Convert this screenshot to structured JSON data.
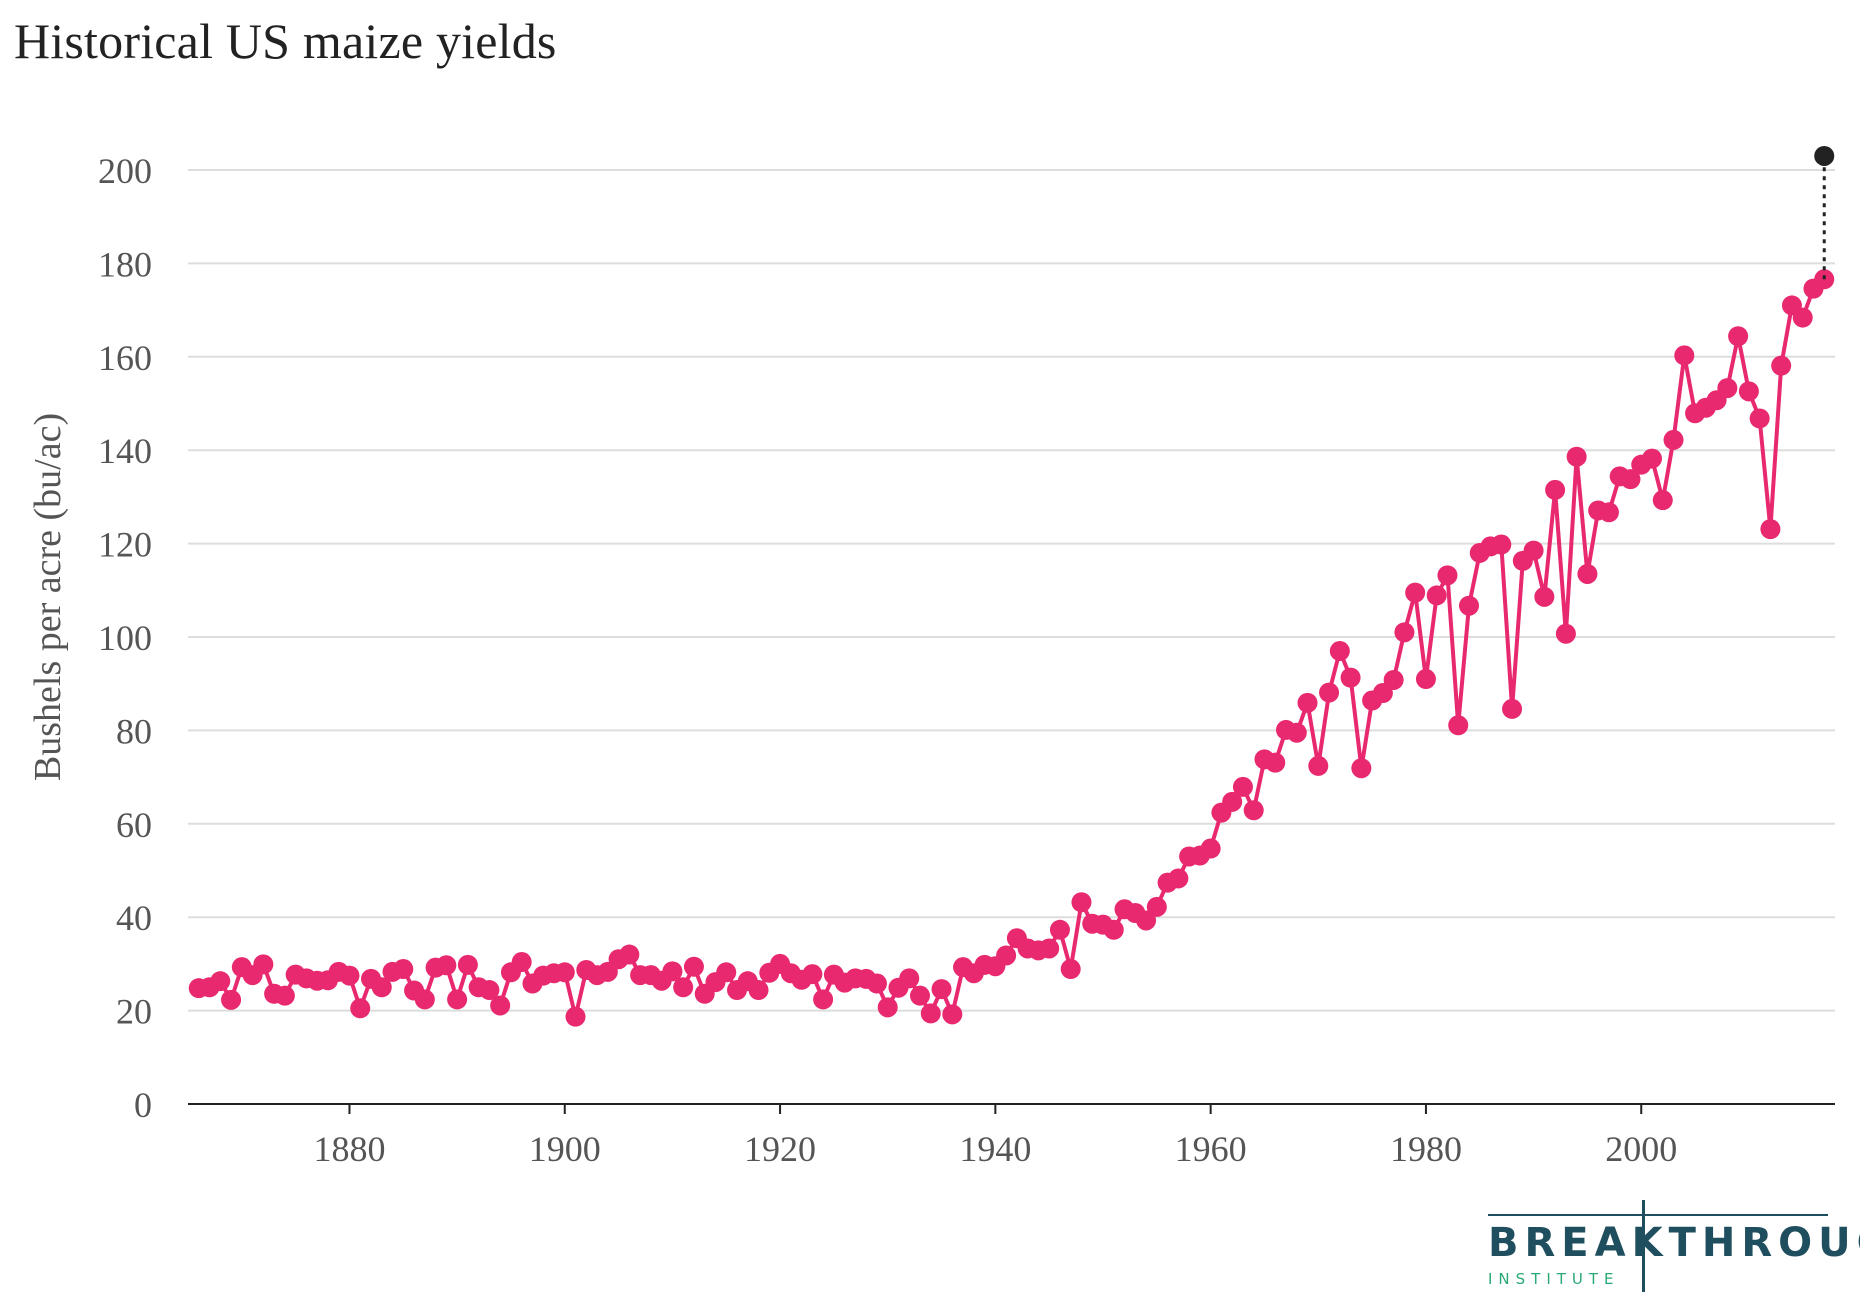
{
  "chart_data": {
    "type": "line",
    "title": "Historical US maize yields",
    "xlabel": "",
    "ylabel": "Bushels per acre (bu/ac)",
    "xlim": [
      1865,
      2018
    ],
    "ylim": [
      0,
      200
    ],
    "x_ticks": [
      1880,
      1900,
      1920,
      1940,
      1960,
      1980,
      2000
    ],
    "y_ticks": [
      0,
      20,
      40,
      60,
      80,
      100,
      120,
      140,
      160,
      180,
      200
    ],
    "grid": true,
    "series": [
      {
        "name": "US maize yield",
        "color": "#e8296f",
        "x": [
          1866,
          1867,
          1868,
          1869,
          1870,
          1871,
          1872,
          1873,
          1874,
          1875,
          1876,
          1877,
          1878,
          1879,
          1880,
          1881,
          1882,
          1883,
          1884,
          1885,
          1886,
          1887,
          1888,
          1889,
          1890,
          1891,
          1892,
          1893,
          1894,
          1895,
          1896,
          1897,
          1898,
          1899,
          1900,
          1901,
          1902,
          1903,
          1904,
          1905,
          1906,
          1907,
          1908,
          1909,
          1910,
          1911,
          1912,
          1913,
          1914,
          1915,
          1916,
          1917,
          1918,
          1919,
          1920,
          1921,
          1922,
          1923,
          1924,
          1925,
          1926,
          1927,
          1928,
          1929,
          1930,
          1931,
          1932,
          1933,
          1934,
          1935,
          1936,
          1937,
          1938,
          1939,
          1940,
          1941,
          1942,
          1943,
          1944,
          1945,
          1946,
          1947,
          1948,
          1949,
          1950,
          1951,
          1952,
          1953,
          1954,
          1955,
          1956,
          1957,
          1958,
          1959,
          1960,
          1961,
          1962,
          1963,
          1964,
          1965,
          1966,
          1967,
          1968,
          1969,
          1970,
          1971,
          1972,
          1973,
          1974,
          1975,
          1976,
          1977,
          1978,
          1979,
          1980,
          1981,
          1982,
          1983,
          1984,
          1985,
          1986,
          1987,
          1988,
          1989,
          1990,
          1991,
          1992,
          1993,
          1994,
          1995,
          1996,
          1997,
          1998,
          1999,
          2000,
          2001,
          2002,
          2003,
          2004,
          2005,
          2006,
          2007,
          2008,
          2009,
          2010,
          2011,
          2012,
          2013,
          2014,
          2015,
          2016,
          2017
        ],
        "values": [
          24.8,
          25.0,
          26.3,
          22.3,
          29.3,
          27.6,
          29.9,
          23.6,
          23.2,
          27.7,
          26.9,
          26.4,
          26.5,
          28.3,
          27.5,
          20.5,
          26.8,
          25.0,
          28.3,
          28.9,
          24.3,
          22.4,
          29.2,
          29.7,
          22.4,
          29.8,
          25.0,
          24.4,
          21.1,
          28.2,
          30.4,
          25.8,
          27.5,
          28.0,
          28.2,
          18.7,
          28.7,
          27.6,
          28.3,
          31.0,
          32.0,
          27.6,
          27.6,
          26.4,
          28.4,
          25.0,
          29.4,
          23.6,
          26.1,
          28.2,
          24.4,
          26.3,
          24.4,
          28.1,
          30.0,
          28.0,
          26.6,
          27.8,
          22.4,
          27.7,
          26.0,
          26.9,
          26.8,
          25.8,
          20.7,
          24.9,
          26.9,
          23.2,
          19.4,
          24.6,
          19.2,
          29.3,
          28.0,
          29.8,
          29.5,
          31.8,
          35.5,
          33.3,
          32.9,
          33.3,
          37.3,
          28.9,
          43.2,
          38.6,
          38.4,
          37.3,
          41.7,
          40.9,
          39.3,
          42.2,
          47.4,
          48.3,
          53.0,
          53.2,
          54.7,
          62.4,
          64.7,
          67.9,
          62.9,
          73.8,
          73.1,
          80.1,
          79.5,
          85.9,
          72.4,
          88.1,
          97.0,
          91.3,
          71.9,
          86.4,
          88.0,
          90.8,
          101.0,
          109.5,
          91.0,
          108.9,
          113.2,
          81.1,
          106.7,
          118.0,
          119.4,
          119.8,
          84.6,
          116.3,
          118.5,
          108.6,
          131.5,
          100.7,
          138.6,
          113.5,
          127.1,
          126.7,
          134.4,
          133.8,
          136.9,
          138.2,
          129.3,
          142.2,
          160.3,
          147.9,
          149.1,
          150.7,
          153.3,
          164.4,
          152.6,
          146.8,
          123.1,
          158.1,
          171.0,
          168.4,
          174.6,
          176.6
        ]
      }
    ],
    "projection": {
      "x": 2017,
      "from": 176.6,
      "to": 203.0,
      "color": "#222222",
      "style": "dotted"
    }
  },
  "logo": {
    "main": "BREAKTHROUGH",
    "sub": "INSTITUTE"
  }
}
